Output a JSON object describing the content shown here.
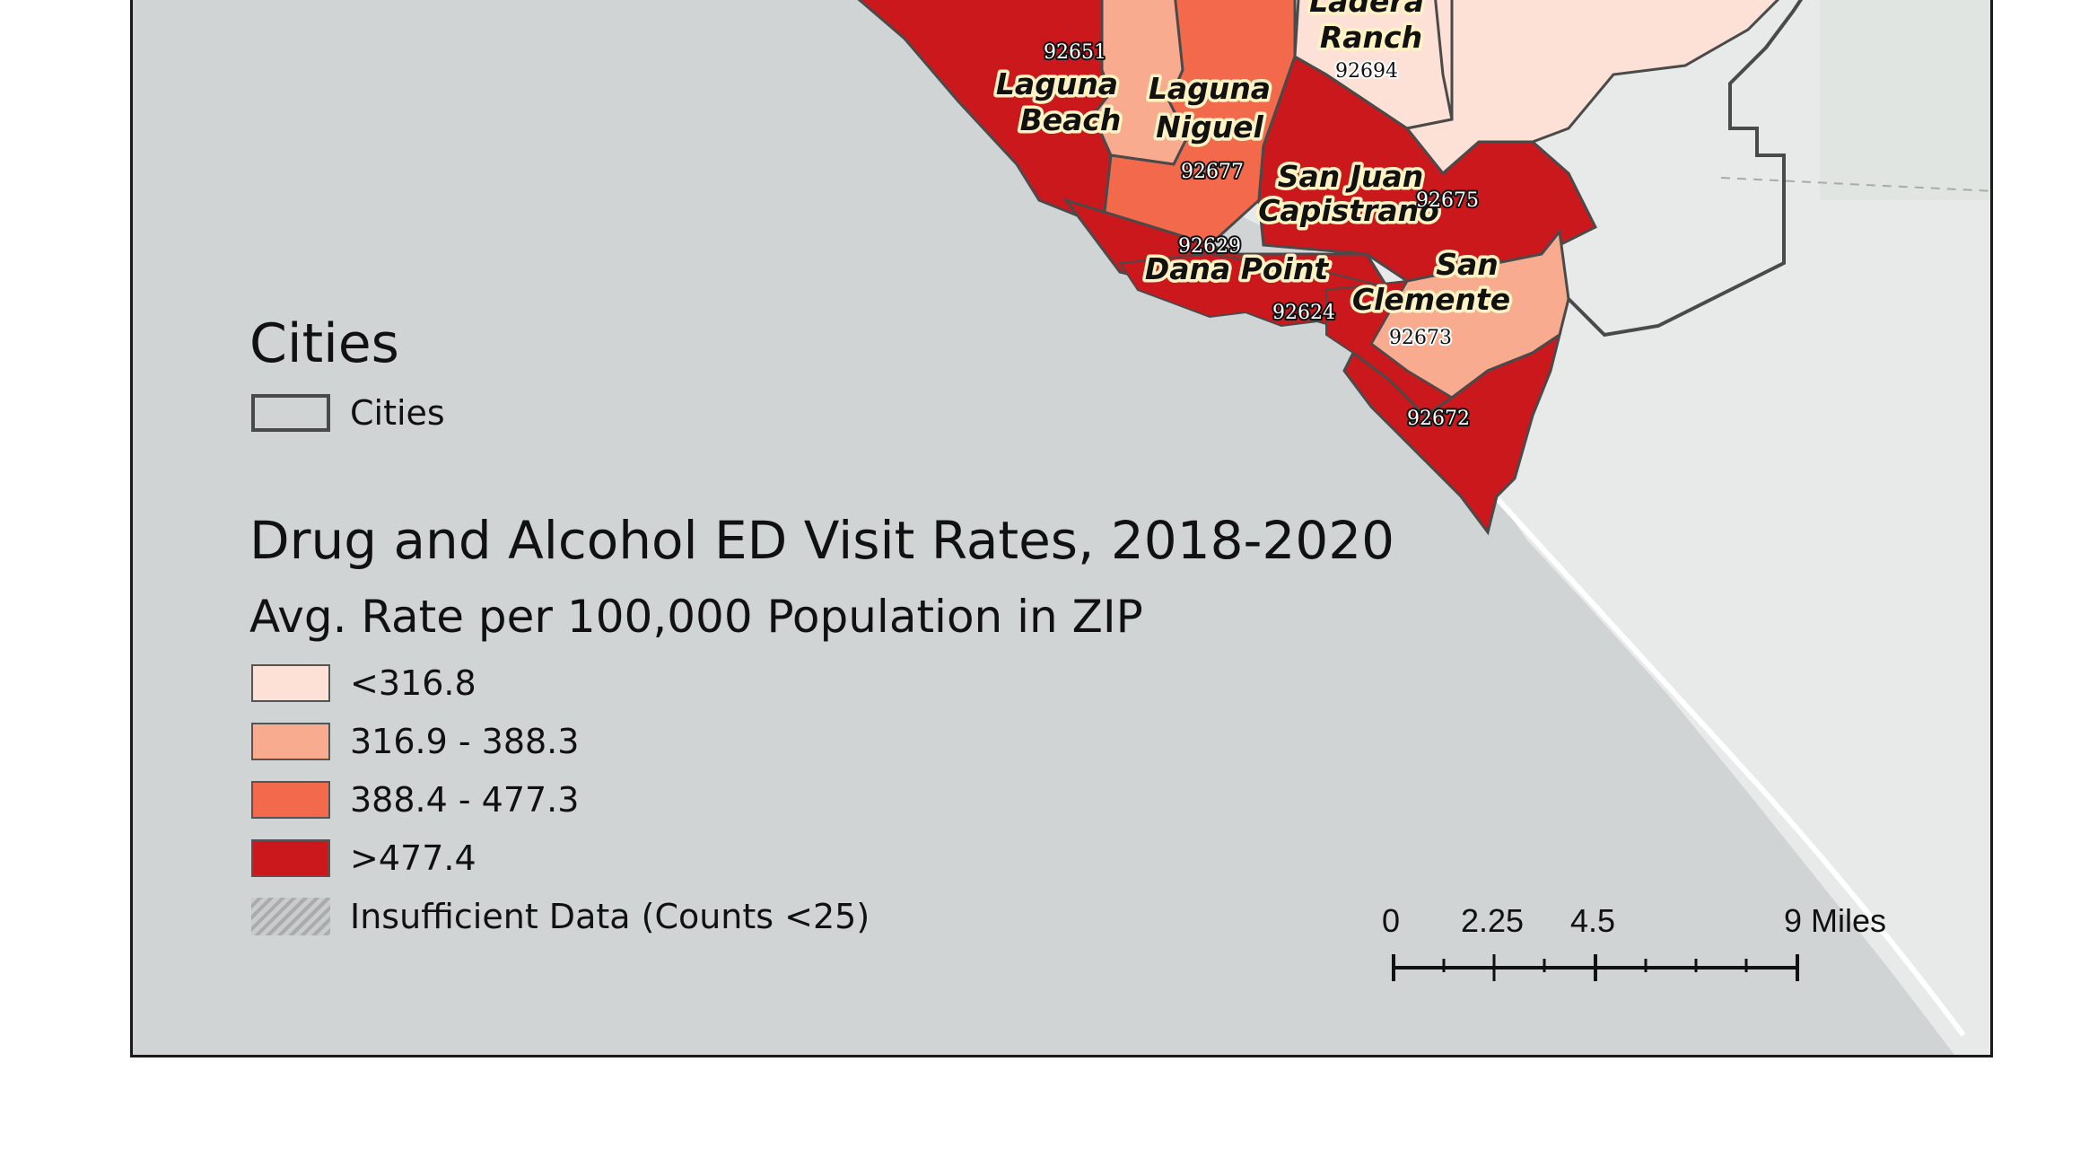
{
  "legend": {
    "cities_title": "Cities",
    "cities_item": "Cities",
    "rates_title": "Drug and Alcohol ED Visit Rates, 2018-2020",
    "rates_subtitle": "Avg. Rate per 100,000 Population in ZIP",
    "classes": [
      {
        "label": "<316.8",
        "color": "#fde0d6"
      },
      {
        "label": "316.9 - 388.3",
        "color": "#f8ab8f"
      },
      {
        "label": "388.4 - 477.3",
        "color": "#f26a4b"
      },
      {
        "label": ">477.4",
        "color": "#cb181d"
      }
    ],
    "insufficient": "Insufficient Data (Counts <25)"
  },
  "cities": {
    "ladera_1": "Ladera",
    "ladera_2": "Ranch",
    "laguna_beach_1": "Laguna",
    "laguna_beach_2": "Beach",
    "laguna_niguel_1": "Laguna",
    "laguna_niguel_2": "Niguel",
    "san_juan_1": "San Juan",
    "san_juan_2": "Capistrano",
    "dana_point": "Dana Point",
    "san_clemente_1": "San",
    "san_clemente_2": "Clemente"
  },
  "zips": {
    "z92651": "92651",
    "z92694": "92694",
    "z92677": "92677",
    "z92675": "92675",
    "z92629": "92629",
    "z92624": "92624",
    "z92673": "92673",
    "z92672": "92672"
  },
  "scale_bar": {
    "labels": [
      "0",
      "2.25",
      "4.5",
      "9 Miles"
    ]
  },
  "colors": {
    "ocean": "#d1d4d5",
    "land": "#e9ebea",
    "city_boundary": "#4a4a4a"
  }
}
